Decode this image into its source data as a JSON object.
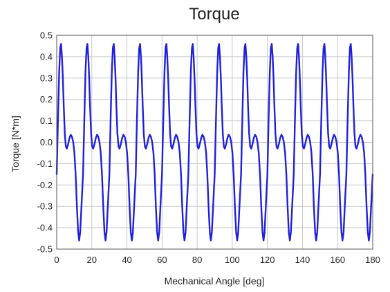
{
  "chart_data": {
    "type": "line",
    "title": "Torque",
    "xlabel": "Mechanical Angle [deg]",
    "ylabel": "Torque [N*m]",
    "xlim": [
      0,
      180
    ],
    "ylim": [
      -0.5,
      0.5
    ],
    "xticks": [
      "0",
      "20",
      "40",
      "60",
      "80",
      "100",
      "120",
      "140",
      "160",
      "180"
    ],
    "yticks": [
      "0.5",
      "0.4",
      "0.3",
      "0.2",
      "0.1",
      "0.0",
      "-0.1",
      "-0.2",
      "-0.3",
      "-0.4",
      "-0.5"
    ],
    "grid": true,
    "legend": "none",
    "series": [
      {
        "color": "#1f1fdc",
        "period_deg": 15,
        "cycle_offset_deg": 0,
        "cycle_profile": [
          [
            0.0,
            -0.15
          ],
          [
            0.7,
            0.1
          ],
          [
            1.4,
            0.33
          ],
          [
            2.0,
            0.44
          ],
          [
            2.5,
            0.46
          ],
          [
            3.0,
            0.4
          ],
          [
            3.5,
            0.3
          ],
          [
            4.0,
            0.17
          ],
          [
            4.6,
            0.04
          ],
          [
            5.2,
            -0.02
          ],
          [
            5.8,
            -0.03
          ],
          [
            6.5,
            -0.01
          ],
          [
            7.3,
            0.02
          ],
          [
            8.0,
            0.035
          ],
          [
            8.7,
            0.025
          ],
          [
            9.4,
            0.0
          ],
          [
            10.1,
            -0.05
          ],
          [
            10.8,
            -0.15
          ],
          [
            11.5,
            -0.3
          ],
          [
            12.2,
            -0.42
          ],
          [
            12.8,
            -0.46
          ],
          [
            13.4,
            -0.42
          ],
          [
            14.1,
            -0.3
          ],
          [
            15.0,
            -0.15
          ]
        ]
      }
    ]
  }
}
